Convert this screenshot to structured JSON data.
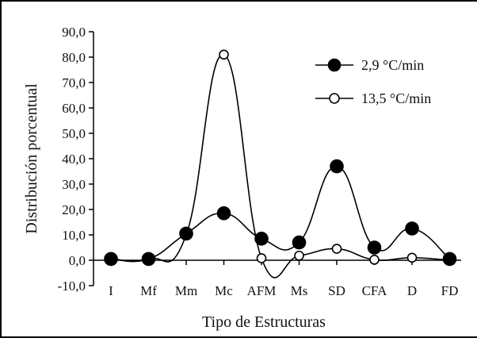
{
  "chart_data": {
    "type": "line",
    "xlabel": "Tipo de Estructuras",
    "ylabel": "Distribución porcentual",
    "categories": [
      "I",
      "Mf",
      "Mm",
      "Mc",
      "AFM",
      "Ms",
      "SD",
      "CFA",
      "D",
      "FD"
    ],
    "ylim": [
      -10,
      90
    ],
    "yticks": [
      "-10,0",
      "0,0",
      "10,0",
      "20,0",
      "30,0",
      "40,0",
      "50,0",
      "60,0",
      "70,0",
      "80,0",
      "90,0"
    ],
    "grid": false,
    "legend_position": "top-right",
    "series": [
      {
        "name": "2,9 °C/min",
        "marker": "filled",
        "values": [
          0.5,
          0.5,
          10.5,
          18.5,
          8.5,
          7.0,
          37.0,
          5.0,
          12.5,
          0.5
        ]
      },
      {
        "name": "13,5 °C/min",
        "marker": "hollow",
        "values": [
          0.5,
          0.5,
          10.0,
          81.0,
          0.8,
          1.8,
          4.5,
          0.2,
          1.0,
          0.0
        ]
      }
    ]
  }
}
